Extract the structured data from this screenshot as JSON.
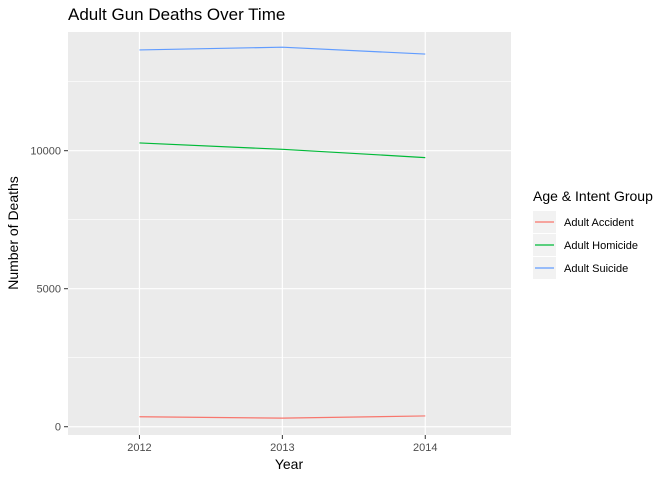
{
  "chart_data": {
    "type": "line",
    "title": "Adult Gun Deaths Over Time",
    "xlabel": "Year",
    "ylabel": "Number of Deaths",
    "x": [
      2012,
      2013,
      2014
    ],
    "x_ticks": [
      "2012",
      "2013",
      "2014"
    ],
    "xlim": [
      2011.5,
      2014.6
    ],
    "y_ticks": [
      "0",
      "5000",
      "10000"
    ],
    "ylim": [
      -300,
      14300
    ],
    "grid": true,
    "legend": {
      "title": "Age & Intent Group",
      "position": "right"
    },
    "series": [
      {
        "name": "Adult Accident",
        "color": "#F8766D",
        "values": [
          360,
          310,
          390
        ]
      },
      {
        "name": "Adult Homicide",
        "color": "#00BA38",
        "values": [
          10280,
          10050,
          9750
        ]
      },
      {
        "name": "Adult Suicide",
        "color": "#619CFF",
        "values": [
          13650,
          13750,
          13500
        ]
      }
    ]
  }
}
